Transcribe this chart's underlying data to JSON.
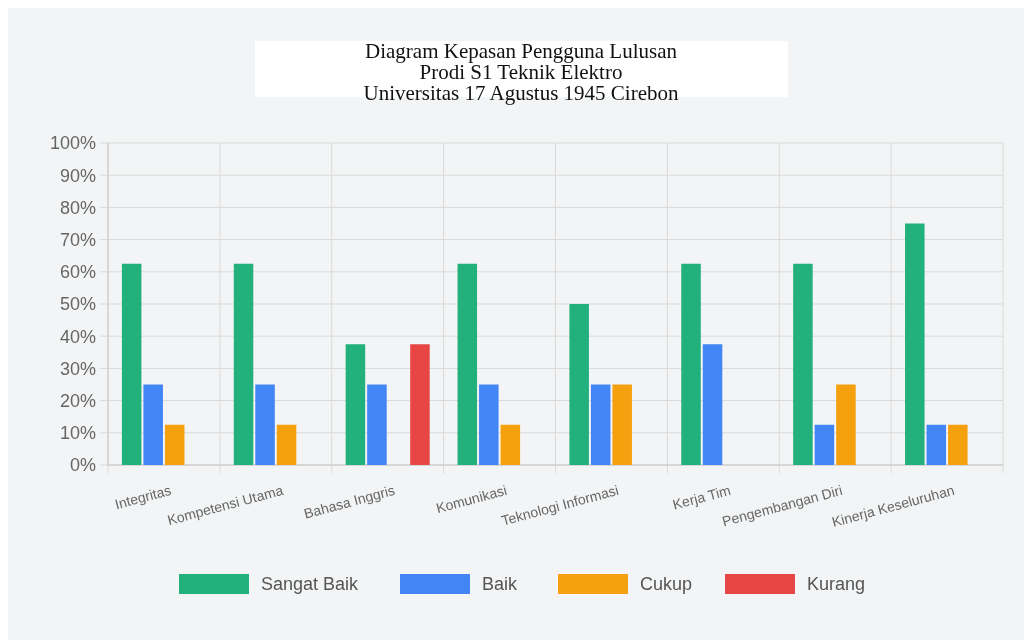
{
  "chart_data": {
    "type": "bar",
    "title": "Diagram Kepasan Pengguna Lulusan\nProdi S1 Teknik Elektro\nUniversitas 17 Agustus 1945 Cirebon",
    "categories": [
      "Integritas",
      "Kompetensi Utama",
      "Bahasa Inggris",
      "Komunikasi",
      "Teknologi Informasi",
      "Kerja Tim",
      "Pengembangan Diri",
      "Kinerja Keseluruhan"
    ],
    "series": [
      {
        "name": "Sangat Baik",
        "color": "#22b07d",
        "values": [
          62.5,
          62.5,
          37.5,
          62.5,
          50,
          62.5,
          62.5,
          75
        ]
      },
      {
        "name": "Baik",
        "color": "#4285f4",
        "values": [
          25,
          25,
          25,
          25,
          25,
          37.5,
          12.5,
          12.5
        ]
      },
      {
        "name": "Cukup",
        "color": "#f5a00f",
        "values": [
          12.5,
          12.5,
          0,
          12.5,
          25,
          0,
          25,
          12.5
        ]
      },
      {
        "name": "Kurang",
        "color": "#e84545",
        "values": [
          0,
          0,
          37.5,
          0,
          0,
          0,
          0,
          0
        ]
      }
    ],
    "ylim": [
      0,
      100
    ],
    "yticks": [
      {
        "value": 0,
        "label": "0%"
      },
      {
        "value": 10,
        "label": "10%"
      },
      {
        "value": 20,
        "label": "20%"
      },
      {
        "value": 30,
        "label": "30%"
      },
      {
        "value": 40,
        "label": "40%"
      },
      {
        "value": 50,
        "label": "50%"
      },
      {
        "value": 60,
        "label": "60%"
      },
      {
        "value": 70,
        "label": "70%"
      },
      {
        "value": 80,
        "label": "80%"
      },
      {
        "value": 90,
        "label": "90%"
      },
      {
        "value": 100,
        "label": "100%"
      }
    ],
    "grid": true,
    "legend": "bottom"
  }
}
